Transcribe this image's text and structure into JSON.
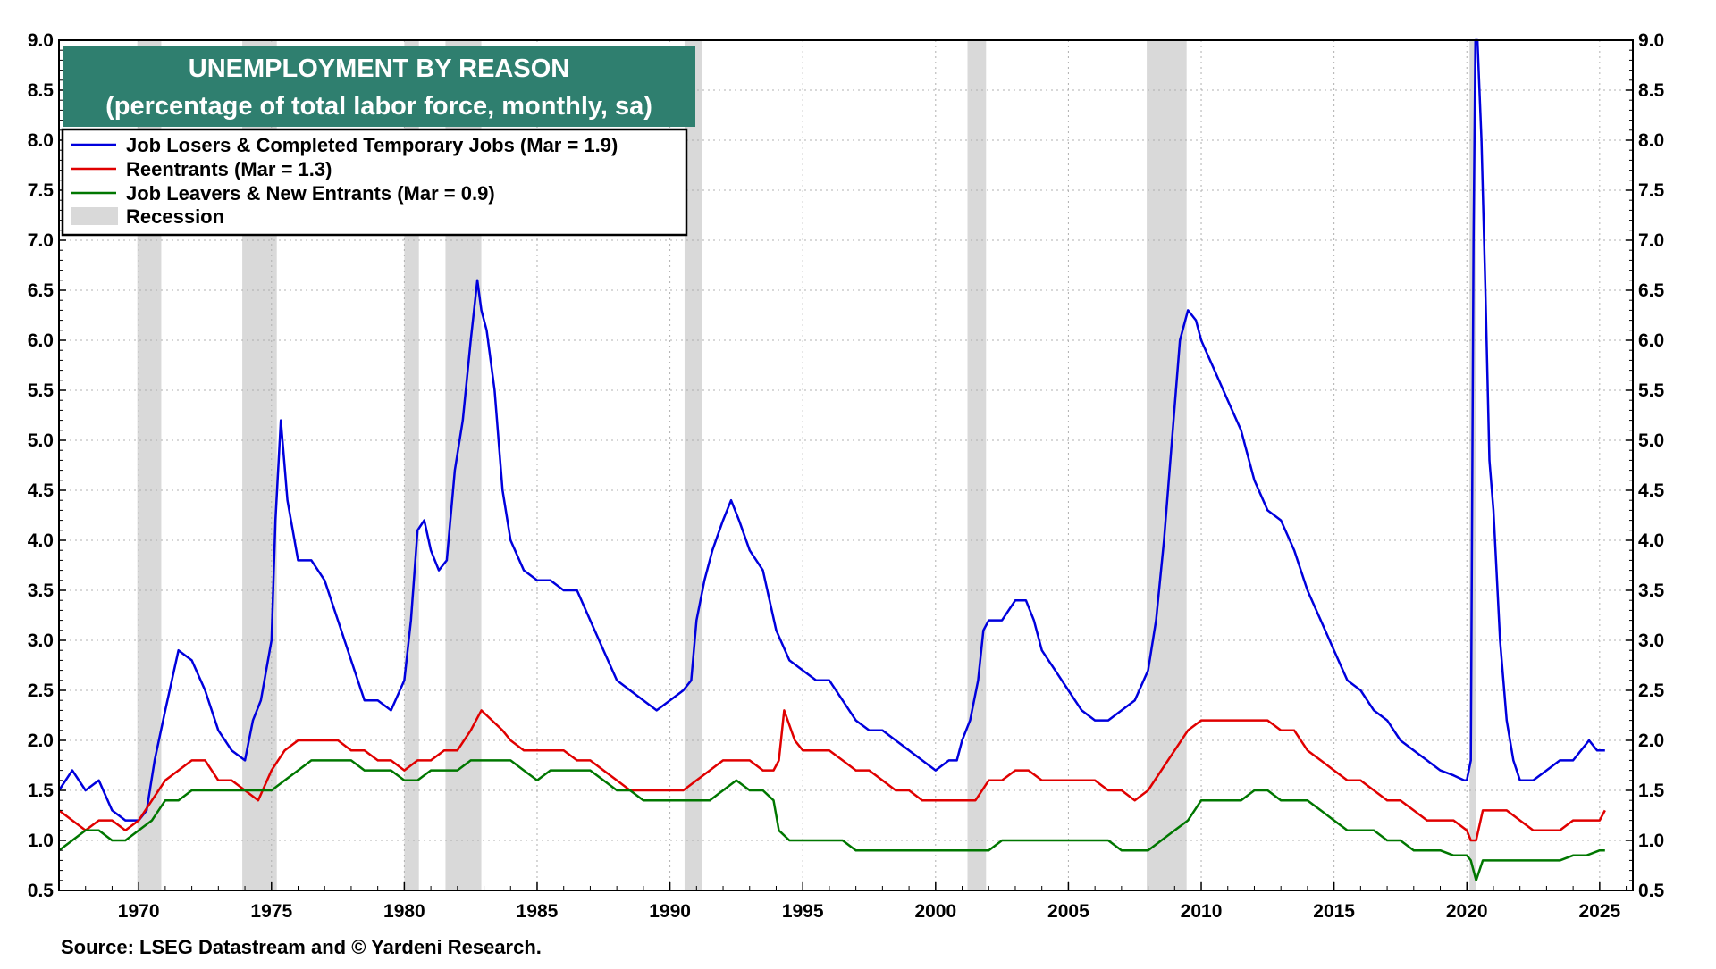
{
  "chart_data": {
    "type": "line",
    "title": "UNEMPLOYMENT BY REASON",
    "subtitle": "(percentage of total labor force, monthly, sa)",
    "source": "Source: LSEG Datastream and © Yardeni Research.",
    "xlim": [
      1967.0,
      2026.25
    ],
    "ylim": [
      0.5,
      9.0
    ],
    "x_ticks": [
      1970,
      1975,
      1980,
      1985,
      1990,
      1995,
      2000,
      2005,
      2010,
      2015,
      2020,
      2025
    ],
    "y_ticks": [
      "0.5",
      "1.0",
      "1.5",
      "2.0",
      "2.5",
      "3.0",
      "3.5",
      "4.0",
      "4.5",
      "5.0",
      "5.5",
      "6.0",
      "6.5",
      "7.0",
      "7.5",
      "8.0",
      "8.5",
      "9.0"
    ],
    "grid": true,
    "legend_position": "top-left",
    "recession_label": "Recession",
    "recessions": [
      [
        1969.95,
        1970.85
      ],
      [
        1973.9,
        1975.2
      ],
      [
        1980.0,
        1980.55
      ],
      [
        1981.55,
        1982.9
      ],
      [
        1990.55,
        1991.2
      ],
      [
        2001.2,
        2001.9
      ],
      [
        2007.95,
        2009.45
      ],
      [
        2020.1,
        2020.35
      ]
    ],
    "series": [
      {
        "name": "Job Losers & Completed Temporary Jobs (Mar = 1.9)",
        "color": "#0000dd",
        "x": [
          1967.0,
          1967.5,
          1968.0,
          1968.5,
          1969.0,
          1969.5,
          1970.0,
          1970.3,
          1970.6,
          1971.0,
          1971.5,
          1972.0,
          1972.5,
          1973.0,
          1973.5,
          1974.0,
          1974.3,
          1974.6,
          1975.0,
          1975.15,
          1975.35,
          1975.6,
          1976.0,
          1976.5,
          1977.0,
          1977.5,
          1978.0,
          1978.5,
          1979.0,
          1979.5,
          1980.0,
          1980.25,
          1980.5,
          1980.75,
          1981.0,
          1981.3,
          1981.6,
          1981.9,
          1982.2,
          1982.5,
          1982.75,
          1982.9,
          1983.1,
          1983.4,
          1983.7,
          1984.0,
          1984.5,
          1985.0,
          1985.5,
          1986.0,
          1986.5,
          1987.0,
          1987.5,
          1988.0,
          1988.5,
          1989.0,
          1989.5,
          1990.0,
          1990.5,
          1990.8,
          1991.0,
          1991.3,
          1991.6,
          1992.0,
          1992.3,
          1992.6,
          1993.0,
          1993.5,
          1994.0,
          1994.5,
          1995.0,
          1995.5,
          1996.0,
          1996.5,
          1997.0,
          1997.5,
          1998.0,
          1998.5,
          1999.0,
          1999.5,
          2000.0,
          2000.5,
          2000.8,
          2001.0,
          2001.3,
          2001.6,
          2001.8,
          2002.0,
          2002.5,
          2003.0,
          2003.4,
          2003.7,
          2004.0,
          2004.5,
          2005.0,
          2005.5,
          2006.0,
          2006.5,
          2007.0,
          2007.5,
          2008.0,
          2008.3,
          2008.6,
          2008.9,
          2009.2,
          2009.5,
          2009.8,
          2010.0,
          2010.5,
          2011.0,
          2011.5,
          2012.0,
          2012.5,
          2013.0,
          2013.5,
          2014.0,
          2014.5,
          2015.0,
          2015.5,
          2016.0,
          2016.5,
          2017.0,
          2017.5,
          2018.0,
          2018.5,
          2019.0,
          2019.5,
          2019.9,
          2020.0,
          2020.15,
          2020.25,
          2020.32,
          2020.4,
          2020.55,
          2020.7,
          2020.85,
          2021.0,
          2021.25,
          2021.5,
          2021.75,
          2022.0,
          2022.5,
          2023.0,
          2023.5,
          2024.0,
          2024.3,
          2024.6,
          2024.9,
          2025.2
        ],
        "values": [
          1.5,
          1.7,
          1.5,
          1.6,
          1.3,
          1.2,
          1.2,
          1.3,
          1.8,
          2.3,
          2.9,
          2.8,
          2.5,
          2.1,
          1.9,
          1.8,
          2.2,
          2.4,
          3.0,
          4.2,
          5.2,
          4.4,
          3.8,
          3.8,
          3.6,
          3.2,
          2.8,
          2.4,
          2.4,
          2.3,
          2.6,
          3.2,
          4.1,
          4.2,
          3.9,
          3.7,
          3.8,
          4.7,
          5.2,
          6.0,
          6.6,
          6.3,
          6.1,
          5.5,
          4.5,
          4.0,
          3.7,
          3.6,
          3.6,
          3.5,
          3.5,
          3.2,
          2.9,
          2.6,
          2.5,
          2.4,
          2.3,
          2.4,
          2.5,
          2.6,
          3.2,
          3.6,
          3.9,
          4.2,
          4.4,
          4.2,
          3.9,
          3.7,
          3.1,
          2.8,
          2.7,
          2.6,
          2.6,
          2.4,
          2.2,
          2.1,
          2.1,
          2.0,
          1.9,
          1.8,
          1.7,
          1.8,
          1.8,
          2.0,
          2.2,
          2.6,
          3.1,
          3.2,
          3.2,
          3.4,
          3.4,
          3.2,
          2.9,
          2.7,
          2.5,
          2.3,
          2.2,
          2.2,
          2.3,
          2.4,
          2.7,
          3.2,
          4.0,
          5.0,
          6.0,
          6.3,
          6.2,
          6.0,
          5.7,
          5.4,
          5.1,
          4.6,
          4.3,
          4.2,
          3.9,
          3.5,
          3.2,
          2.9,
          2.6,
          2.5,
          2.3,
          2.2,
          2.0,
          1.9,
          1.8,
          1.7,
          1.65,
          1.6,
          1.6,
          1.8,
          7.0,
          9.0,
          9.0,
          8.0,
          6.5,
          4.8,
          4.3,
          3.0,
          2.2,
          1.8,
          1.6,
          1.6,
          1.7,
          1.8,
          1.8,
          1.9,
          2.0,
          1.9,
          1.9
        ]
      },
      {
        "name": "Reentrants (Mar = 1.3)",
        "color": "#e00000",
        "x": [
          1967.0,
          1967.5,
          1968.0,
          1968.5,
          1969.0,
          1969.5,
          1970.0,
          1970.5,
          1971.0,
          1971.5,
          1972.0,
          1972.5,
          1973.0,
          1973.5,
          1974.0,
          1974.5,
          1975.0,
          1975.5,
          1976.0,
          1976.5,
          1977.0,
          1977.5,
          1978.0,
          1978.5,
          1979.0,
          1979.5,
          1980.0,
          1980.5,
          1981.0,
          1981.5,
          1982.0,
          1982.5,
          1982.9,
          1983.3,
          1983.7,
          1984.0,
          1984.5,
          1985.0,
          1985.5,
          1986.0,
          1986.5,
          1987.0,
          1987.5,
          1988.0,
          1988.5,
          1989.0,
          1989.5,
          1990.0,
          1990.5,
          1991.0,
          1991.5,
          1992.0,
          1992.5,
          1993.0,
          1993.5,
          1993.9,
          1994.1,
          1994.3,
          1994.7,
          1995.0,
          1995.5,
          1996.0,
          1996.5,
          1997.0,
          1997.5,
          1998.0,
          1998.5,
          1999.0,
          1999.5,
          2000.0,
          2000.5,
          2001.0,
          2001.5,
          2002.0,
          2002.5,
          2003.0,
          2003.5,
          2004.0,
          2004.5,
          2005.0,
          2005.5,
          2006.0,
          2006.5,
          2007.0,
          2007.5,
          2008.0,
          2008.5,
          2009.0,
          2009.5,
          2010.0,
          2010.5,
          2011.0,
          2011.5,
          2012.0,
          2012.5,
          2013.0,
          2013.5,
          2014.0,
          2014.5,
          2015.0,
          2015.5,
          2016.0,
          2016.5,
          2017.0,
          2017.5,
          2018.0,
          2018.5,
          2019.0,
          2019.5,
          2020.0,
          2020.15,
          2020.35,
          2020.6,
          2021.0,
          2021.5,
          2022.0,
          2022.5,
          2023.0,
          2023.5,
          2024.0,
          2024.5,
          2025.0,
          2025.2
        ],
        "values": [
          1.3,
          1.2,
          1.1,
          1.2,
          1.2,
          1.1,
          1.2,
          1.4,
          1.6,
          1.7,
          1.8,
          1.8,
          1.6,
          1.6,
          1.5,
          1.4,
          1.7,
          1.9,
          2.0,
          2.0,
          2.0,
          2.0,
          1.9,
          1.9,
          1.8,
          1.8,
          1.7,
          1.8,
          1.8,
          1.9,
          1.9,
          2.1,
          2.3,
          2.2,
          2.1,
          2.0,
          1.9,
          1.9,
          1.9,
          1.9,
          1.8,
          1.8,
          1.7,
          1.6,
          1.5,
          1.5,
          1.5,
          1.5,
          1.5,
          1.6,
          1.7,
          1.8,
          1.8,
          1.8,
          1.7,
          1.7,
          1.8,
          2.3,
          2.0,
          1.9,
          1.9,
          1.9,
          1.8,
          1.7,
          1.7,
          1.6,
          1.5,
          1.5,
          1.4,
          1.4,
          1.4,
          1.4,
          1.4,
          1.6,
          1.6,
          1.7,
          1.7,
          1.6,
          1.6,
          1.6,
          1.6,
          1.6,
          1.5,
          1.5,
          1.4,
          1.5,
          1.7,
          1.9,
          2.1,
          2.2,
          2.2,
          2.2,
          2.2,
          2.2,
          2.2,
          2.1,
          2.1,
          1.9,
          1.8,
          1.7,
          1.6,
          1.6,
          1.5,
          1.4,
          1.4,
          1.3,
          1.2,
          1.2,
          1.2,
          1.1,
          1.0,
          1.0,
          1.3,
          1.3,
          1.3,
          1.2,
          1.1,
          1.1,
          1.1,
          1.2,
          1.2,
          1.2,
          1.3
        ]
      },
      {
        "name": "Job Leavers & New Entrants (Mar = 0.9)",
        "color": "#007700",
        "x": [
          1967.0,
          1967.5,
          1968.0,
          1968.5,
          1969.0,
          1969.5,
          1970.0,
          1970.5,
          1971.0,
          1971.5,
          1972.0,
          1972.5,
          1973.0,
          1973.5,
          1974.0,
          1974.5,
          1975.0,
          1975.5,
          1976.0,
          1976.5,
          1977.0,
          1977.5,
          1978.0,
          1978.5,
          1979.0,
          1979.5,
          1980.0,
          1980.5,
          1981.0,
          1981.5,
          1982.0,
          1982.5,
          1983.0,
          1983.5,
          1984.0,
          1984.5,
          1985.0,
          1985.5,
          1986.0,
          1986.5,
          1987.0,
          1987.5,
          1988.0,
          1988.5,
          1989.0,
          1989.5,
          1990.0,
          1990.5,
          1991.0,
          1991.5,
          1992.0,
          1992.5,
          1993.0,
          1993.5,
          1993.9,
          1994.1,
          1994.5,
          1995.0,
          1995.5,
          1996.0,
          1996.5,
          1997.0,
          1997.5,
          1998.0,
          1998.5,
          1999.0,
          1999.5,
          2000.0,
          2000.5,
          2001.0,
          2001.5,
          2002.0,
          2002.5,
          2003.0,
          2003.5,
          2004.0,
          2004.5,
          2005.0,
          2005.5,
          2006.0,
          2006.5,
          2007.0,
          2007.5,
          2008.0,
          2008.5,
          2009.0,
          2009.5,
          2010.0,
          2010.5,
          2011.0,
          2011.5,
          2012.0,
          2012.5,
          2013.0,
          2013.5,
          2014.0,
          2014.5,
          2015.0,
          2015.5,
          2016.0,
          2016.5,
          2017.0,
          2017.5,
          2018.0,
          2018.5,
          2019.0,
          2019.5,
          2020.0,
          2020.15,
          2020.35,
          2020.6,
          2021.0,
          2021.5,
          2022.0,
          2022.5,
          2023.0,
          2023.5,
          2024.0,
          2024.5,
          2025.0,
          2025.2
        ],
        "values": [
          0.9,
          1.0,
          1.1,
          1.1,
          1.0,
          1.0,
          1.1,
          1.2,
          1.4,
          1.4,
          1.5,
          1.5,
          1.5,
          1.5,
          1.5,
          1.5,
          1.5,
          1.6,
          1.7,
          1.8,
          1.8,
          1.8,
          1.8,
          1.7,
          1.7,
          1.7,
          1.6,
          1.6,
          1.7,
          1.7,
          1.7,
          1.8,
          1.8,
          1.8,
          1.8,
          1.7,
          1.6,
          1.7,
          1.7,
          1.7,
          1.7,
          1.6,
          1.5,
          1.5,
          1.4,
          1.4,
          1.4,
          1.4,
          1.4,
          1.4,
          1.5,
          1.6,
          1.5,
          1.5,
          1.4,
          1.1,
          1.0,
          1.0,
          1.0,
          1.0,
          1.0,
          0.9,
          0.9,
          0.9,
          0.9,
          0.9,
          0.9,
          0.9,
          0.9,
          0.9,
          0.9,
          0.9,
          1.0,
          1.0,
          1.0,
          1.0,
          1.0,
          1.0,
          1.0,
          1.0,
          1.0,
          0.9,
          0.9,
          0.9,
          1.0,
          1.1,
          1.2,
          1.4,
          1.4,
          1.4,
          1.4,
          1.5,
          1.5,
          1.4,
          1.4,
          1.4,
          1.3,
          1.2,
          1.1,
          1.1,
          1.1,
          1.0,
          1.0,
          0.9,
          0.9,
          0.9,
          0.85,
          0.85,
          0.8,
          0.6,
          0.8,
          0.8,
          0.8,
          0.8,
          0.8,
          0.8,
          0.8,
          0.85,
          0.85,
          0.9,
          0.9
        ]
      }
    ]
  }
}
